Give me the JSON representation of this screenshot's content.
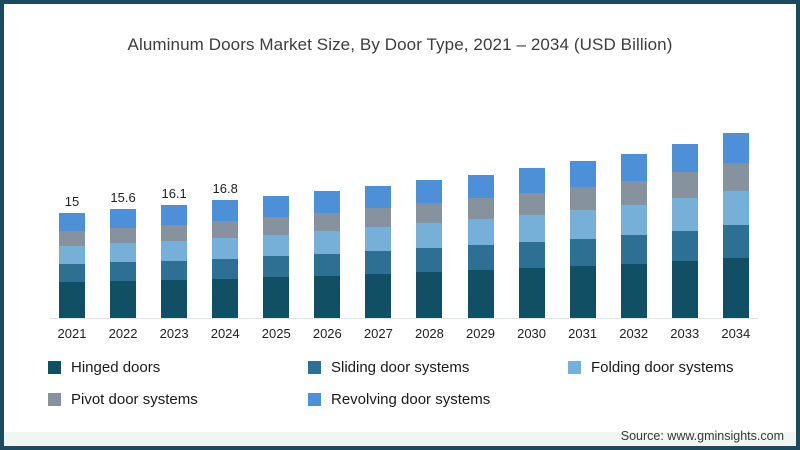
{
  "frame": {
    "border_color": "#1c4a5f",
    "background": "#ffffff"
  },
  "title": "Aluminum Doors Market Size, By Door Type, 2021 – 2034 (USD Billion)",
  "source": "Source: www.gminsights.com",
  "legend": [
    {
      "label": "Hinged doors",
      "color": "#115064"
    },
    {
      "label": "Sliding door systems",
      "color": "#2e6f94"
    },
    {
      "label": "Folding door systems",
      "color": "#76afd7"
    },
    {
      "label": "Pivot door systems",
      "color": "#86929d"
    },
    {
      "label": "Revolving door systems",
      "color": "#4e90d7"
    }
  ],
  "chart_data": {
    "type": "bar",
    "stacked": true,
    "title": "Aluminum Doors Market Size, By Door Type, 2021 – 2034 (USD Billion)",
    "xlabel": "",
    "ylabel": "USD Billion",
    "legend_position": "bottom",
    "grid": false,
    "categories": [
      "2021",
      "2022",
      "2023",
      "2024",
      "2025",
      "2026",
      "2027",
      "2028",
      "2029",
      "2030",
      "2031",
      "2032",
      "2033",
      "2034"
    ],
    "series": [
      {
        "name": "Hinged doors",
        "color": "#115064",
        "values": [
          5.1,
          5.3,
          5.4,
          5.6,
          5.8,
          6.0,
          6.3,
          6.6,
          6.8,
          7.1,
          7.4,
          7.7,
          8.1,
          8.6
        ]
      },
      {
        "name": "Sliding door systems",
        "color": "#2e6f94",
        "values": [
          2.6,
          2.7,
          2.8,
          2.9,
          3.0,
          3.1,
          3.3,
          3.4,
          3.6,
          3.7,
          3.9,
          4.1,
          4.4,
          4.7
        ]
      },
      {
        "name": "Folding door systems",
        "color": "#76afd7",
        "values": [
          2.6,
          2.7,
          2.8,
          3.0,
          3.1,
          3.3,
          3.4,
          3.6,
          3.7,
          3.9,
          4.1,
          4.3,
          4.6,
          4.9
        ]
      },
      {
        "name": "Pivot door systems",
        "color": "#86929d",
        "values": [
          2.1,
          2.2,
          2.3,
          2.4,
          2.5,
          2.6,
          2.7,
          2.8,
          3.0,
          3.1,
          3.3,
          3.5,
          3.7,
          4.0
        ]
      },
      {
        "name": "Revolving door systems",
        "color": "#4e90d7",
        "values": [
          2.6,
          2.7,
          2.8,
          2.9,
          3.0,
          3.1,
          3.2,
          3.3,
          3.4,
          3.6,
          3.7,
          3.9,
          4.1,
          4.2
        ]
      }
    ],
    "totals": [
      15.0,
      15.6,
      16.1,
      16.8,
      17.4,
      18.1,
      18.9,
      19.7,
      20.5,
      21.4,
      22.4,
      23.5,
      24.9,
      26.4
    ],
    "data_labels": [
      "15",
      "15.6",
      "16.1",
      "16.8",
      "",
      "",
      "",
      "",
      "",
      "",
      "",
      "",
      "",
      ""
    ]
  }
}
